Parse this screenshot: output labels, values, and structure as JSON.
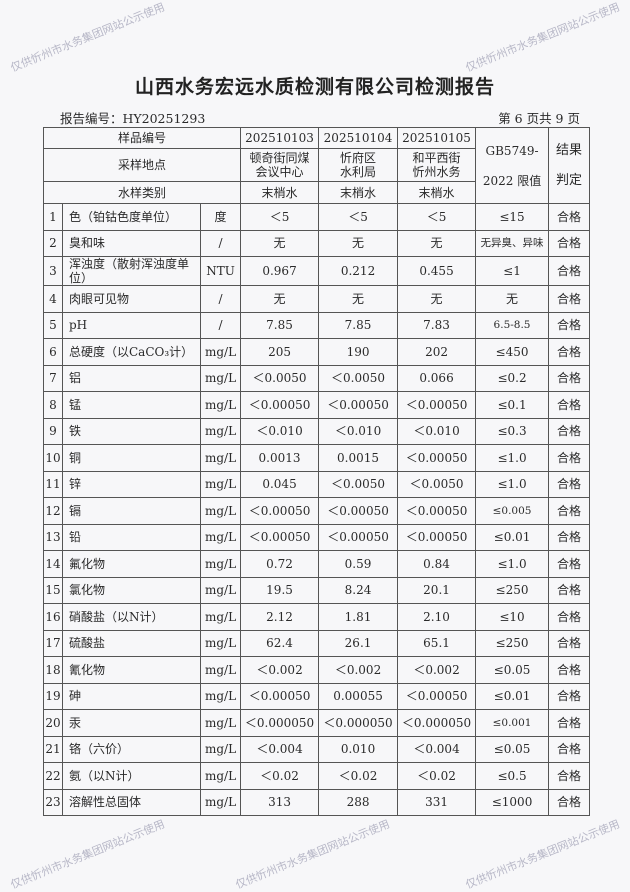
{
  "title": "山西水务宏远水质检测有限公司检测报告",
  "report_no": "报告编号：HY20251293",
  "page_info": "第 6 页共 9 页",
  "watermark": "仅供忻州市水务集团网站公示使用",
  "header": {
    "sample_no_label": "样品编号",
    "location_label": "采样地点",
    "type_label": "水样类别",
    "limit_label_1": "GB5749-",
    "limit_label_2": "2022 限值",
    "result_label_1": "结果",
    "result_label_2": "判定",
    "samples": [
      {
        "no": "202510103",
        "loc1": "顿奇街同煤",
        "loc2": "会议中心",
        "type": "末梢水"
      },
      {
        "no": "202510104",
        "loc1": "忻府区",
        "loc2": "水利局",
        "type": "末梢水"
      },
      {
        "no": "202510105",
        "loc1": "和平西街",
        "loc2": "忻州水务",
        "type": "末梢水"
      }
    ]
  },
  "rows": [
    {
      "n": "1",
      "item": "色（铂钴色度单位）",
      "unit": "度",
      "v1": "＜5",
      "v2": "＜5",
      "v3": "＜5",
      "limit": "≤15",
      "res": "合格"
    },
    {
      "n": "2",
      "item": "臭和味",
      "unit": "/",
      "v1": "无",
      "v2": "无",
      "v3": "无",
      "limit": "无异臭、异味",
      "res": "合格"
    },
    {
      "n": "3",
      "item": "浑浊度（散射浑浊度单位）",
      "unit": "NTU",
      "v1": "0.967",
      "v2": "0.212",
      "v3": "0.455",
      "limit": "≤1",
      "res": "合格"
    },
    {
      "n": "4",
      "item": "肉眼可见物",
      "unit": "/",
      "v1": "无",
      "v2": "无",
      "v3": "无",
      "limit": "无",
      "res": "合格"
    },
    {
      "n": "5",
      "item": "pH",
      "unit": "/",
      "v1": "7.85",
      "v2": "7.85",
      "v3": "7.83",
      "limit": "6.5-8.5",
      "res": "合格"
    },
    {
      "n": "6",
      "item": "总硬度（以CaCO₃计）",
      "unit": "mg/L",
      "v1": "205",
      "v2": "190",
      "v3": "202",
      "limit": "≤450",
      "res": "合格"
    },
    {
      "n": "7",
      "item": "铝",
      "unit": "mg/L",
      "v1": "＜0.0050",
      "v2": "＜0.0050",
      "v3": "0.066",
      "limit": "≤0.2",
      "res": "合格"
    },
    {
      "n": "8",
      "item": "锰",
      "unit": "mg/L",
      "v1": "＜0.00050",
      "v2": "＜0.00050",
      "v3": "＜0.00050",
      "limit": "≤0.1",
      "res": "合格"
    },
    {
      "n": "9",
      "item": "铁",
      "unit": "mg/L",
      "v1": "＜0.010",
      "v2": "＜0.010",
      "v3": "＜0.010",
      "limit": "≤0.3",
      "res": "合格"
    },
    {
      "n": "10",
      "item": "铜",
      "unit": "mg/L",
      "v1": "0.0013",
      "v2": "0.0015",
      "v3": "＜0.00050",
      "limit": "≤1.0",
      "res": "合格"
    },
    {
      "n": "11",
      "item": "锌",
      "unit": "mg/L",
      "v1": "0.045",
      "v2": "＜0.0050",
      "v3": "＜0.0050",
      "limit": "≤1.0",
      "res": "合格"
    },
    {
      "n": "12",
      "item": "镉",
      "unit": "mg/L",
      "v1": "＜0.00050",
      "v2": "＜0.00050",
      "v3": "＜0.00050",
      "limit": "≤0.005",
      "res": "合格"
    },
    {
      "n": "13",
      "item": "铅",
      "unit": "mg/L",
      "v1": "＜0.00050",
      "v2": "＜0.00050",
      "v3": "＜0.00050",
      "limit": "≤0.01",
      "res": "合格"
    },
    {
      "n": "14",
      "item": "氟化物",
      "unit": "mg/L",
      "v1": "0.72",
      "v2": "0.59",
      "v3": "0.84",
      "limit": "≤1.0",
      "res": "合格"
    },
    {
      "n": "15",
      "item": "氯化物",
      "unit": "mg/L",
      "v1": "19.5",
      "v2": "8.24",
      "v3": "20.1",
      "limit": "≤250",
      "res": "合格"
    },
    {
      "n": "16",
      "item": "硝酸盐（以N计）",
      "unit": "mg/L",
      "v1": "2.12",
      "v2": "1.81",
      "v3": "2.10",
      "limit": "≤10",
      "res": "合格"
    },
    {
      "n": "17",
      "item": "硫酸盐",
      "unit": "mg/L",
      "v1": "62.4",
      "v2": "26.1",
      "v3": "65.1",
      "limit": "≤250",
      "res": "合格"
    },
    {
      "n": "18",
      "item": "氰化物",
      "unit": "mg/L",
      "v1": "＜0.002",
      "v2": "＜0.002",
      "v3": "＜0.002",
      "limit": "≤0.05",
      "res": "合格"
    },
    {
      "n": "19",
      "item": "砷",
      "unit": "mg/L",
      "v1": "＜0.00050",
      "v2": "0.00055",
      "v3": "＜0.00050",
      "limit": "≤0.01",
      "res": "合格"
    },
    {
      "n": "20",
      "item": "汞",
      "unit": "mg/L",
      "v1": "＜0.000050",
      "v2": "＜0.000050",
      "v3": "＜0.000050",
      "limit": "≤0.001",
      "res": "合格"
    },
    {
      "n": "21",
      "item": "铬（六价）",
      "unit": "mg/L",
      "v1": "＜0.004",
      "v2": "0.010",
      "v3": "＜0.004",
      "limit": "≤0.05",
      "res": "合格"
    },
    {
      "n": "22",
      "item": "氨（以N计）",
      "unit": "mg/L",
      "v1": "＜0.02",
      "v2": "＜0.02",
      "v3": "＜0.02",
      "limit": "≤0.5",
      "res": "合格"
    },
    {
      "n": "23",
      "item": "溶解性总固体",
      "unit": "mg/L",
      "v1": "313",
      "v2": "288",
      "v3": "331",
      "limit": "≤1000",
      "res": "合格"
    }
  ]
}
